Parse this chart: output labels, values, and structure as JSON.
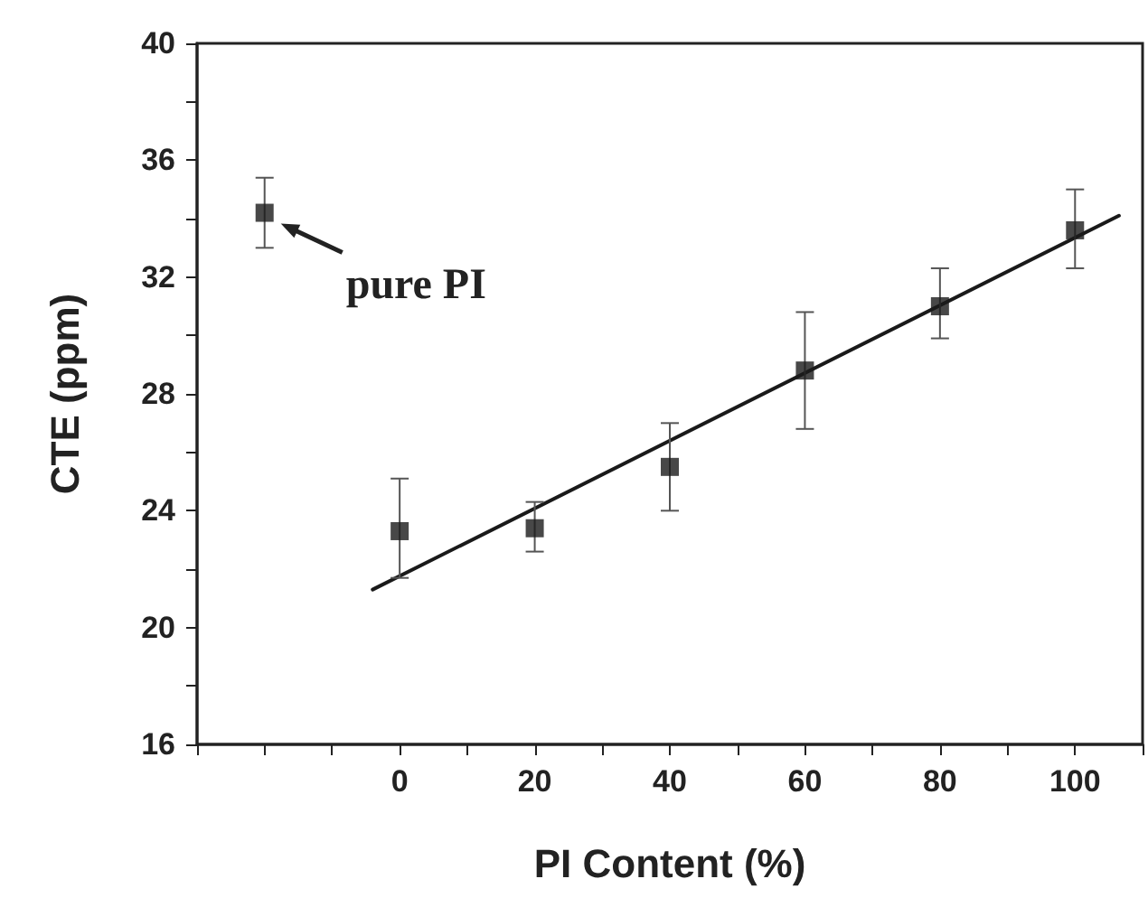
{
  "chart_data": {
    "type": "scatter",
    "xlabel": "PI Content (%)",
    "ylabel": "CTE (ppm)",
    "series": [
      {
        "color": "#1a1a1a",
        "marker": "square",
        "x": [
          -20,
          0,
          20,
          40,
          60,
          80,
          100
        ],
        "values": [
          34.2,
          23.3,
          23.4,
          25.5,
          28.8,
          31.0,
          33.6
        ],
        "errors": [
          [
            33.0,
            35.4
          ],
          [
            21.7,
            25.1
          ],
          [
            22.6,
            24.3
          ],
          [
            24.0,
            27.0
          ],
          [
            26.8,
            30.8
          ],
          [
            29.9,
            32.3
          ],
          [
            32.3,
            35.0
          ]
        ]
      },
      {
        "type": "line",
        "color": "#1a1a1a",
        "marker": "none",
        "line_style": "solid",
        "x": [
          -4,
          106.5
        ],
        "values": [
          21.3,
          34.1
        ]
      }
    ],
    "xlim": [
      -30,
      110
    ],
    "xticks": [
      {
        "value": -30,
        "label": null
      },
      {
        "value": -20,
        "label": null
      },
      {
        "value": -10,
        "label": null
      },
      0,
      {
        "value": 10,
        "label": null
      },
      20,
      {
        "value": 30,
        "label": null
      },
      40,
      {
        "value": 50,
        "label": null
      },
      60,
      {
        "value": 70,
        "label": null
      },
      80,
      {
        "value": 90,
        "label": null
      },
      100,
      {
        "value": 110,
        "label": null
      }
    ],
    "ylim": [
      16,
      40
    ],
    "yticks": [
      16,
      {
        "value": 18,
        "label": null
      },
      20,
      {
        "value": 22,
        "label": null
      },
      24,
      {
        "value": 26,
        "label": null
      },
      28,
      {
        "value": 30,
        "label": null
      },
      32,
      {
        "value": 34,
        "label": null
      },
      36,
      {
        "value": 38,
        "label": null
      },
      40
    ],
    "grid": false,
    "annotations": [
      {
        "text": "pure PI",
        "x": -20,
        "y": 34.2
      }
    ]
  }
}
